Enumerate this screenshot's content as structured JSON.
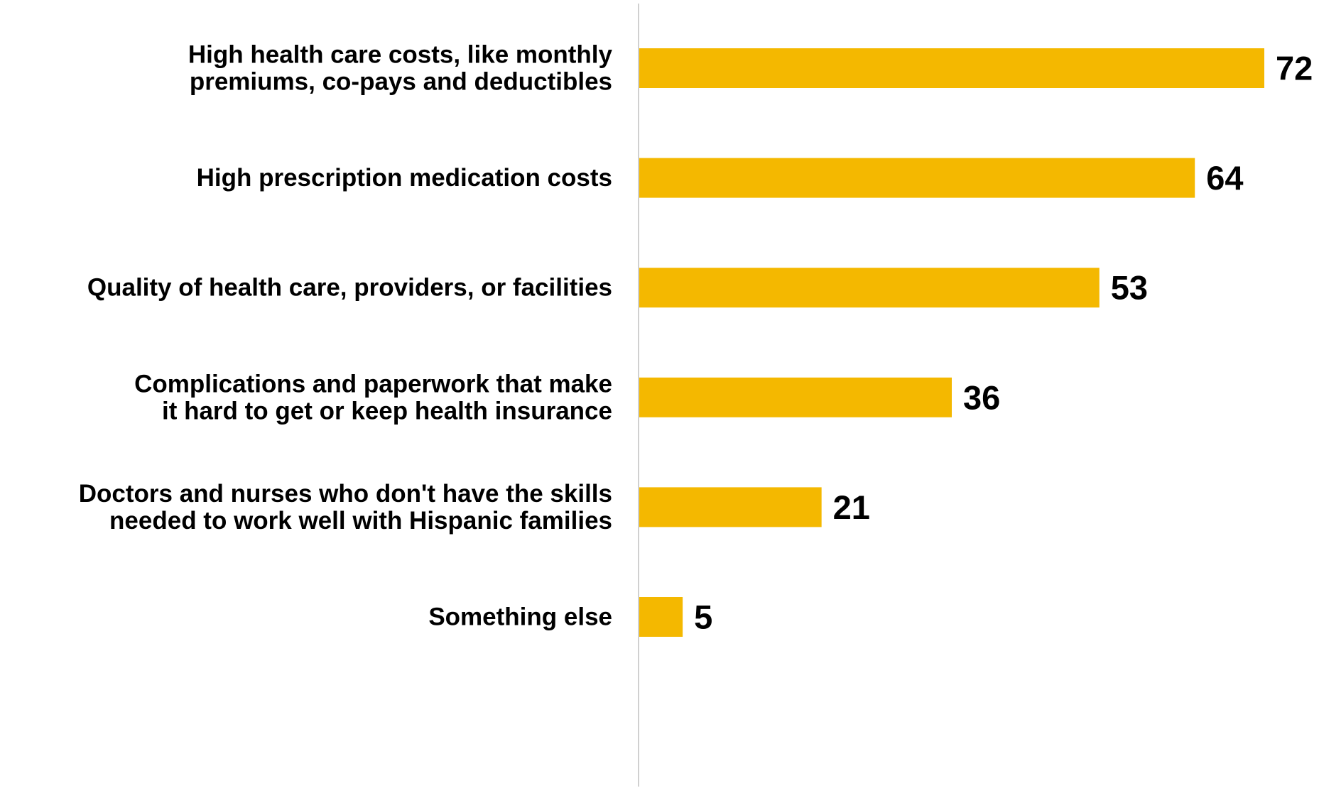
{
  "chart_data": {
    "type": "bar",
    "orientation": "horizontal",
    "title": "",
    "xlabel": "",
    "ylabel": "",
    "categories": [
      [
        "High health care costs, like monthly",
        "premiums, co-pays and deductibles"
      ],
      [
        "High prescription medication costs"
      ],
      [
        "Quality of health care, providers, or facilities"
      ],
      [
        "Complications and paperwork that make",
        "it hard to get or keep health insurance"
      ],
      [
        "Doctors and nurses who don't have the skills",
        "needed to work well with Hispanic families"
      ],
      [
        "Something else"
      ]
    ],
    "values": [
      72,
      64,
      53,
      36,
      21,
      5
    ],
    "xlim": [
      0,
      72
    ],
    "grid": false,
    "legend": "none",
    "colors": {
      "bar": "#F4B800",
      "axis": "#D0D0D0",
      "text": "#000000"
    }
  }
}
